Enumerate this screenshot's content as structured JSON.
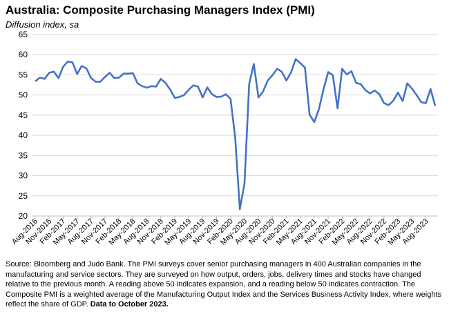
{
  "header": {
    "title": "Australia:  Composite Purchasing Managers Index (PMI)",
    "subtitle": "Diffusion index, sa"
  },
  "footer": {
    "source": "Source: Bloomberg and Judo Bank. The PMI surveys cover senior purchasing managers in 400 Australian companies in the manufacturing and service sectors.  They are surveyed on how output, orders, jobs, delivery times and stocks have changed relative to the previous month.  A reading above 50 indicates expansion, and a reading below 50 indicates contraction.  The Composite PMI is a weighted average of the Manufacturing Output Index and the Services Business Activity Index, where weights reflect the share of GDP.",
    "data_note": "Data to October 2023."
  },
  "chart_data": {
    "type": "line",
    "title": "Australia:  Composite Purchasing Managers Index (PMI)",
    "ylabel": "Diffusion index, sa",
    "xlabel": "",
    "ylim": [
      20,
      65
    ],
    "yticks": [
      20,
      25,
      30,
      35,
      40,
      45,
      50,
      55,
      60,
      65
    ],
    "grid": "horizontal",
    "line_color": "#4472c4",
    "tick_labels": [
      "Aug-2016",
      "Nov-2016",
      "Feb-2017",
      "May-2017",
      "Aug-2017",
      "Nov-2017",
      "Feb-2018",
      "May-2018",
      "Aug-2018",
      "Nov-2018",
      "Feb-2019",
      "May-2019",
      "Aug-2019",
      "Nov-2019",
      "Feb-2020",
      "May-2020",
      "Aug-2020",
      "Nov-2020",
      "Feb-2021",
      "May-2021",
      "Aug-2021",
      "Nov-2021",
      "Feb-2022",
      "May-2022",
      "Aug-2022",
      "Nov-2022",
      "Feb-2023",
      "May-2023",
      "Aug-2023"
    ],
    "series": [
      {
        "name": "Composite PMI",
        "start": "Aug-2016",
        "end": "Oct-2023",
        "values": [
          53.4,
          54.3,
          54.0,
          55.5,
          55.8,
          54.2,
          57.0,
          58.3,
          58.1,
          55.2,
          57.2,
          56.6,
          54.2,
          53.3,
          53.3,
          54.5,
          55.5,
          54.2,
          54.3,
          55.3,
          55.3,
          55.4,
          52.9,
          52.2,
          51.8,
          52.2,
          52.1,
          54.0,
          53.0,
          51.4,
          49.3,
          49.5,
          50.0,
          51.3,
          52.4,
          52.1,
          49.4,
          51.9,
          50.2,
          49.5,
          49.6,
          50.2,
          49.0,
          39.4,
          21.7,
          28.1,
          52.7,
          57.7,
          49.4,
          50.9,
          53.6,
          54.9,
          56.5,
          55.8,
          53.6,
          55.6,
          58.9,
          57.9,
          56.8,
          45.1,
          43.3,
          46.5,
          51.5,
          55.7,
          54.9,
          46.7,
          56.5,
          55.1,
          55.9,
          53.0,
          52.7,
          51.2,
          50.4,
          51.1,
          50.2,
          48.0,
          47.5,
          48.6,
          50.6,
          48.5,
          52.9,
          51.6,
          50.0,
          48.2,
          48.0,
          51.5,
          47.3
        ]
      }
    ]
  }
}
